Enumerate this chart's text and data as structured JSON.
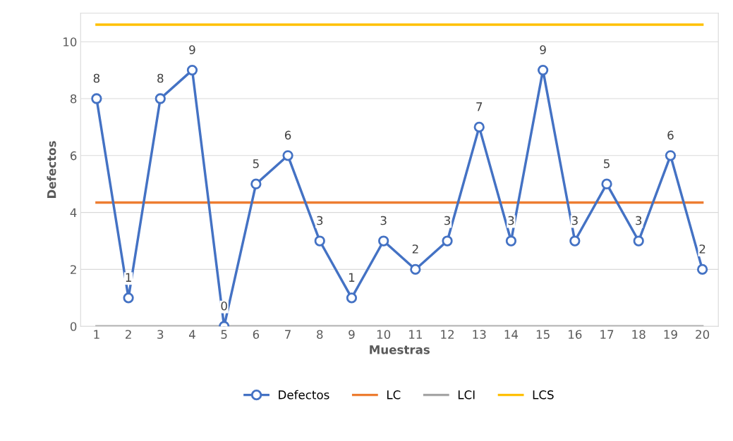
{
  "chart_data": {
    "type": "line",
    "xlabel": "Muestras",
    "ylabel": "Defectos",
    "categories": [
      "1",
      "2",
      "3",
      "4",
      "5",
      "6",
      "7",
      "8",
      "9",
      "10",
      "11",
      "12",
      "13",
      "14",
      "15",
      "16",
      "17",
      "18",
      "19",
      "20"
    ],
    "series": [
      {
        "name": "Defectos",
        "color": "#4472c4",
        "marker": "circle",
        "data_labels": true,
        "values": [
          8,
          1,
          8,
          9,
          0,
          5,
          6,
          3,
          1,
          3,
          2,
          3,
          7,
          3,
          9,
          3,
          5,
          3,
          6,
          2
        ]
      },
      {
        "name": "LC",
        "color": "#ed7d31",
        "marker": "none",
        "values": [
          4.35,
          4.35,
          4.35,
          4.35,
          4.35,
          4.35,
          4.35,
          4.35,
          4.35,
          4.35,
          4.35,
          4.35,
          4.35,
          4.35,
          4.35,
          4.35,
          4.35,
          4.35,
          4.35,
          4.35
        ]
      },
      {
        "name": "LCI",
        "color": "#a5a5a5",
        "marker": "none",
        "values": [
          0,
          0,
          0,
          0,
          0,
          0,
          0,
          0,
          0,
          0,
          0,
          0,
          0,
          0,
          0,
          0,
          0,
          0,
          0,
          0
        ]
      },
      {
        "name": "LCS",
        "color": "#ffc000",
        "marker": "none",
        "values": [
          10.6,
          10.6,
          10.6,
          10.6,
          10.6,
          10.6,
          10.6,
          10.6,
          10.6,
          10.6,
          10.6,
          10.6,
          10.6,
          10.6,
          10.6,
          10.6,
          10.6,
          10.6,
          10.6,
          10.6
        ]
      }
    ],
    "ylim": [
      0,
      11
    ],
    "yticks": [
      0,
      2,
      4,
      6,
      8,
      10
    ],
    "grid": "y",
    "legend": "bottom",
    "line_style": "solid"
  }
}
